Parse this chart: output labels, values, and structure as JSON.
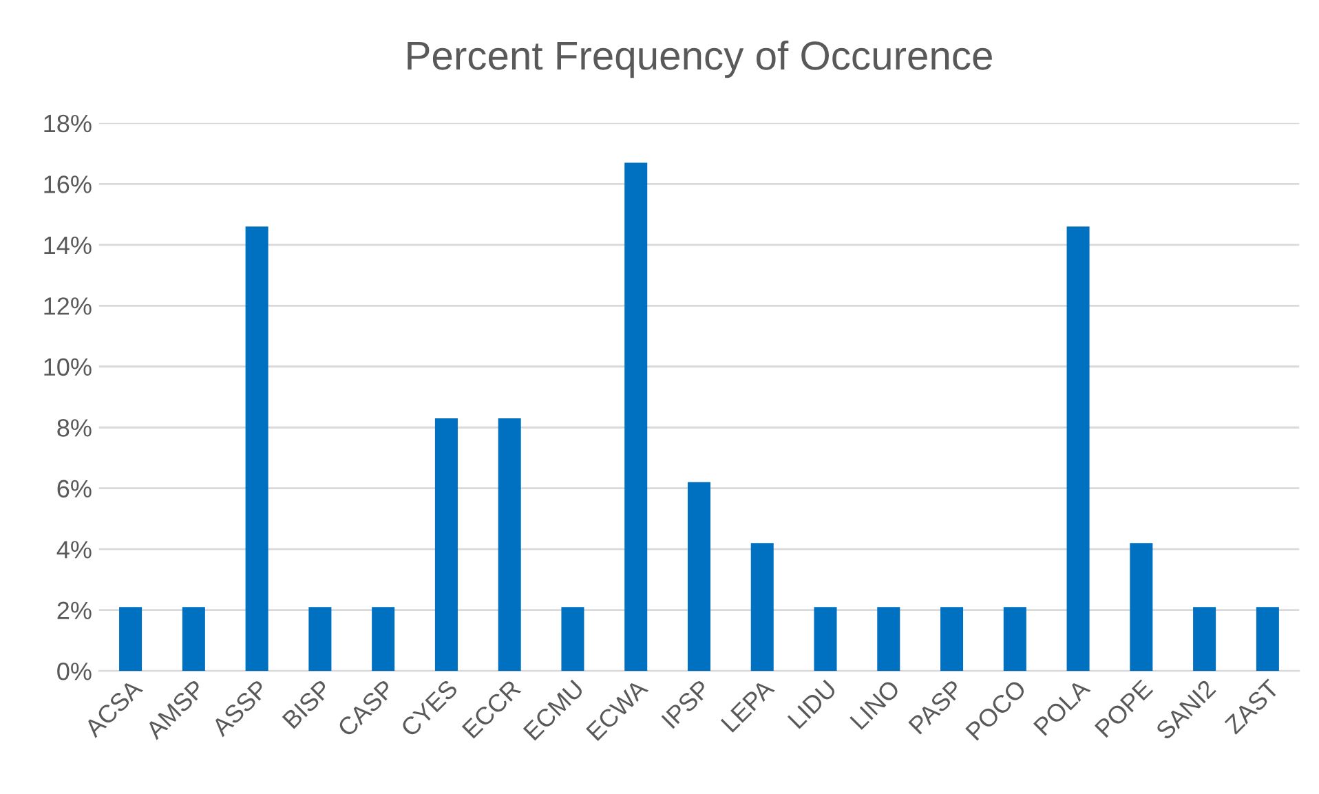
{
  "chart_data": {
    "type": "bar",
    "title": "Percent Frequency of Occurence",
    "categories": [
      "ACSA",
      "AMSP",
      "ASSP",
      "BISP",
      "CASP",
      "CYES",
      "ECCR",
      "ECMU",
      "ECWA",
      "IPSP",
      "LEPA",
      "LIDU",
      "LINO",
      "PASP",
      "POCO",
      "POLA",
      "POPE",
      "SANI2",
      "ZAST"
    ],
    "values": [
      2.1,
      2.1,
      14.6,
      2.1,
      2.1,
      8.3,
      8.3,
      2.1,
      16.7,
      6.2,
      4.2,
      2.1,
      2.1,
      2.1,
      2.1,
      14.6,
      4.2,
      2.1,
      2.1
    ],
    "color": "#0070c0",
    "ylim": [
      0,
      18
    ],
    "yticks": [
      {
        "value": 0,
        "label": "0%"
      },
      {
        "value": 2,
        "label": "2%"
      },
      {
        "value": 4,
        "label": "4%"
      },
      {
        "value": 6,
        "label": "6%"
      },
      {
        "value": 8,
        "label": "8%"
      },
      {
        "value": 10,
        "label": "10%"
      },
      {
        "value": 12,
        "label": "12%"
      },
      {
        "value": 14,
        "label": "14%"
      },
      {
        "value": 16,
        "label": "16%"
      },
      {
        "value": 18,
        "label": "18%"
      }
    ],
    "grid": "y"
  }
}
